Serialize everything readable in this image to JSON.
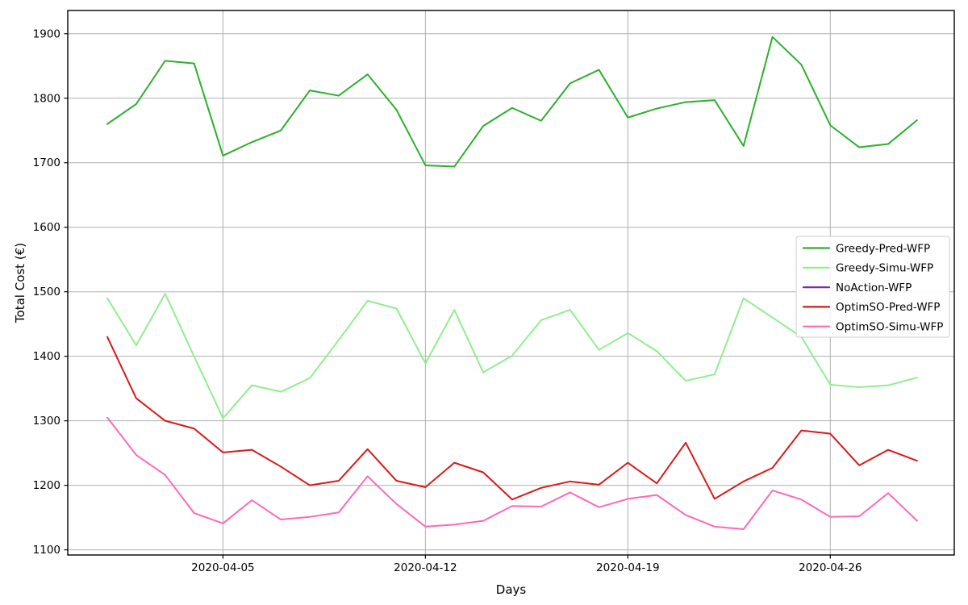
{
  "figure": {
    "title": "",
    "xlabel": "Days",
    "ylabel": "Total Cost (€)"
  },
  "chart_data": {
    "type": "line",
    "title": "",
    "xlabel": "Days",
    "ylabel": "Total Cost (€)",
    "grid": true,
    "legend_position": "right",
    "x": [
      "2020-04-01",
      "2020-04-02",
      "2020-04-03",
      "2020-04-04",
      "2020-04-05",
      "2020-04-06",
      "2020-04-07",
      "2020-04-08",
      "2020-04-09",
      "2020-04-10",
      "2020-04-11",
      "2020-04-12",
      "2020-04-13",
      "2020-04-14",
      "2020-04-15",
      "2020-04-16",
      "2020-04-17",
      "2020-04-18",
      "2020-04-19",
      "2020-04-20",
      "2020-04-21",
      "2020-04-22",
      "2020-04-23",
      "2020-04-24",
      "2020-04-25",
      "2020-04-26",
      "2020-04-27",
      "2020-04-28",
      "2020-04-29"
    ],
    "xticks": [
      "2020-04-05",
      "2020-04-12",
      "2020-04-19",
      "2020-04-26"
    ],
    "yticks": [
      1100,
      1200,
      1300,
      1400,
      1500,
      1600,
      1700,
      1800,
      1900
    ],
    "ylim": [
      1092,
      1936
    ],
    "xlim_index": [
      -1.367,
      29.287
    ],
    "series": [
      {
        "name": "Greedy-Pred-WFP",
        "color": "#2cb02c",
        "values": [
          1760,
          1791,
          1858,
          1854,
          1711,
          1732,
          1750,
          1812,
          1804,
          1837,
          1782,
          1696,
          1694,
          1757,
          1785,
          1765,
          1823,
          1844,
          1770,
          1784,
          1794,
          1797,
          1726,
          1895,
          1852,
          1758,
          1724,
          1729,
          1766
        ]
      },
      {
        "name": "Greedy-Simu-WFP",
        "color": "#90ee90",
        "values": [
          1490,
          1417,
          1497,
          1400,
          1304,
          1355,
          1345,
          1366,
          1425,
          1486,
          1474,
          1389,
          1472,
          1375,
          1401,
          1456,
          1472,
          1410,
          1436,
          1408,
          1362,
          1372,
          1490,
          1460,
          1430,
          1356,
          1352,
          1355,
          1367
        ]
      },
      {
        "name": "NoAction-WFP",
        "color": "#7e2f9e",
        "values": []
      },
      {
        "name": "OptimSO-Pred-WFP",
        "color": "#d91a1a",
        "values": [
          1430,
          1335,
          1300,
          1288,
          1251,
          1255,
          1229,
          1200,
          1207,
          1256,
          1207,
          1197,
          1235,
          1220,
          1178,
          1196,
          1206,
          1201,
          1235,
          1203,
          1266,
          1179,
          1206,
          1227,
          1285,
          1280,
          1231,
          1255,
          1238
        ]
      },
      {
        "name": "OptimSO-Simu-WFP",
        "color": "#ff69b4",
        "values": [
          1305,
          1247,
          1216,
          1157,
          1141,
          1177,
          1147,
          1151,
          1158,
          1214,
          1171,
          1136,
          1139,
          1145,
          1168,
          1167,
          1189,
          1166,
          1179,
          1185,
          1154,
          1136,
          1132,
          1192,
          1178,
          1151,
          1152,
          1188,
          1145
        ]
      }
    ],
    "colors": {
      "grid": "#b0b0b0",
      "spine": "#000000",
      "legend_border": "#cccccc",
      "legend_background": "#ffffff"
    }
  }
}
